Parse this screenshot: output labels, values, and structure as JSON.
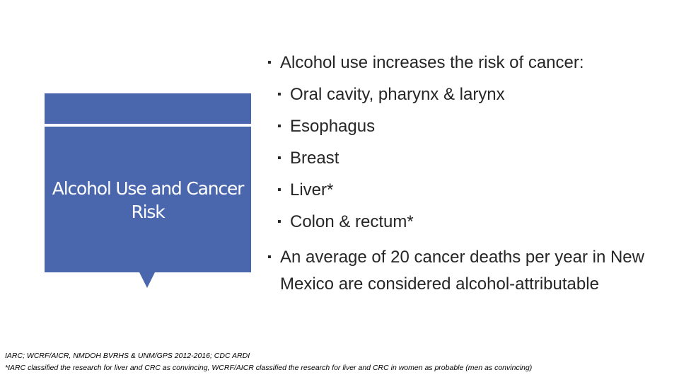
{
  "slide": {
    "title": "Alcohol Use and Cancer Risk",
    "bullets": [
      {
        "text": "Alcohol use increases the risk of cancer:",
        "level": 1
      },
      {
        "text": "Oral cavity, pharynx & larynx",
        "level": 2
      },
      {
        "text": "Esophagus",
        "level": 2
      },
      {
        "text": "Breast",
        "level": 2
      },
      {
        "text": "Liver*",
        "level": 2
      },
      {
        "text": "Colon & rectum*",
        "level": 2
      },
      {
        "text": "An average of 20 cancer deaths per year in New Mexico are considered alcohol-attributable",
        "level": 1
      }
    ],
    "footnotes": [
      "IARC; WCRF/AICR, NMDOH BVRHS & UNM/GPS 2012-2016; CDC ARDI",
      "*IARC classified the research for liver and CRC as convincing, WCRF/AICR classified the research for liver and CRC in women as probable (men as convincing)"
    ]
  }
}
